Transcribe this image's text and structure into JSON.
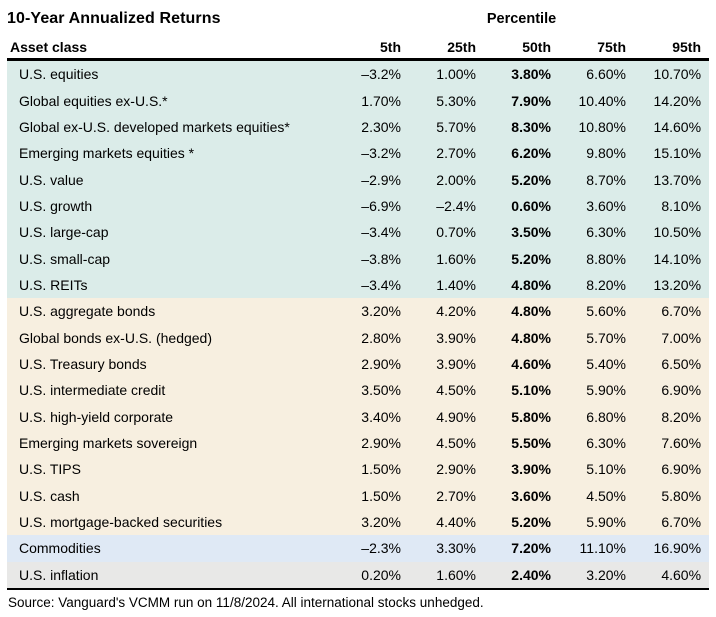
{
  "title": "10-Year Annualized Returns",
  "percentile_group_label": "Percentile",
  "table": {
    "columns": [
      "Asset class",
      "5th",
      "25th",
      "50th",
      "75th",
      "95th"
    ],
    "sections": [
      {
        "name": "equities",
        "color": "#dbece9",
        "rows": [
          {
            "label": "U.S. equities",
            "values": [
              "–3.2%",
              "1.00%",
              "3.80%",
              "6.60%",
              "10.70%"
            ]
          },
          {
            "label": "Global equities ex-U.S.*",
            "values": [
              "1.70%",
              "5.30%",
              "7.90%",
              "10.40%",
              "14.20%"
            ]
          },
          {
            "label": "Global ex-U.S. developed markets equities*",
            "values": [
              "2.30%",
              "5.70%",
              "8.30%",
              "10.80%",
              "14.60%"
            ]
          },
          {
            "label": "Emerging markets equities *",
            "values": [
              "–3.2%",
              "2.70%",
              "6.20%",
              "9.80%",
              "15.10%"
            ]
          },
          {
            "label": "U.S. value",
            "values": [
              "–2.9%",
              "2.00%",
              "5.20%",
              "8.70%",
              "13.70%"
            ]
          },
          {
            "label": "U.S. growth",
            "values": [
              "–6.9%",
              "–2.4%",
              "0.60%",
              "3.60%",
              "8.10%"
            ]
          },
          {
            "label": "U.S. large-cap",
            "values": [
              "–3.4%",
              "0.70%",
              "3.50%",
              "6.30%",
              "10.50%"
            ]
          },
          {
            "label": "U.S. small-cap",
            "values": [
              "–3.8%",
              "1.60%",
              "5.20%",
              "8.80%",
              "14.10%"
            ]
          },
          {
            "label": "U.S. REITs",
            "values": [
              "–3.4%",
              "1.40%",
              "4.80%",
              "8.20%",
              "13.20%"
            ]
          }
        ]
      },
      {
        "name": "fixed-income",
        "color": "#f7efe0",
        "rows": [
          {
            "label": "U.S. aggregate bonds",
            "values": [
              "3.20%",
              "4.20%",
              "4.80%",
              "5.60%",
              "6.70%"
            ]
          },
          {
            "label": "Global bonds ex-U.S. (hedged)",
            "values": [
              "2.80%",
              "3.90%",
              "4.80%",
              "5.70%",
              "7.00%"
            ]
          },
          {
            "label": "U.S. Treasury bonds",
            "values": [
              "2.90%",
              "3.90%",
              "4.60%",
              "5.40%",
              "6.50%"
            ]
          },
          {
            "label": "U.S. intermediate credit",
            "values": [
              "3.50%",
              "4.50%",
              "5.10%",
              "5.90%",
              "6.90%"
            ]
          },
          {
            "label": "U.S. high-yield corporate",
            "values": [
              "3.40%",
              "4.90%",
              "5.80%",
              "6.80%",
              "8.20%"
            ]
          },
          {
            "label": "Emerging markets sovereign",
            "values": [
              "2.90%",
              "4.50%",
              "5.50%",
              "6.30%",
              "7.60%"
            ]
          },
          {
            "label": "U.S. TIPS",
            "values": [
              "1.50%",
              "2.90%",
              "3.90%",
              "5.10%",
              "6.90%"
            ]
          },
          {
            "label": "U.S. cash",
            "values": [
              "1.50%",
              "2.70%",
              "3.60%",
              "4.50%",
              "5.80%"
            ]
          },
          {
            "label": "U.S. mortgage-backed securities",
            "values": [
              "3.20%",
              "4.40%",
              "5.20%",
              "5.90%",
              "6.70%"
            ]
          }
        ]
      },
      {
        "name": "commodities",
        "color": "#dfe9f5",
        "rows": [
          {
            "label": "Commodities",
            "values": [
              "–2.3%",
              "3.30%",
              "7.20%",
              "11.10%",
              "16.90%"
            ]
          }
        ]
      },
      {
        "name": "inflation",
        "color": "#e8e8e7",
        "rows": [
          {
            "label": "U.S. inflation",
            "values": [
              "0.20%",
              "1.60%",
              "2.40%",
              "3.20%",
              "4.60%"
            ]
          }
        ]
      }
    ]
  },
  "footer": "Source: Vanguard's VCMM run on 11/8/2024. All international stocks unhedged.",
  "chart_data": {
    "type": "table",
    "title": "10-Year Annualized Returns",
    "column_group_label": "Percentile",
    "columns": [
      "5th",
      "25th",
      "50th",
      "75th",
      "95th"
    ],
    "unit": "percent",
    "rows": [
      {
        "asset_class": "U.S. equities",
        "group": "equities",
        "values": [
          -3.2,
          1.0,
          3.8,
          6.6,
          10.7
        ]
      },
      {
        "asset_class": "Global equities ex-U.S.*",
        "group": "equities",
        "values": [
          1.7,
          5.3,
          7.9,
          10.4,
          14.2
        ]
      },
      {
        "asset_class": "Global ex-U.S. developed markets equities*",
        "group": "equities",
        "values": [
          2.3,
          5.7,
          8.3,
          10.8,
          14.6
        ]
      },
      {
        "asset_class": "Emerging markets equities *",
        "group": "equities",
        "values": [
          -3.2,
          2.7,
          6.2,
          9.8,
          15.1
        ]
      },
      {
        "asset_class": "U.S. value",
        "group": "equities",
        "values": [
          -2.9,
          2.0,
          5.2,
          8.7,
          13.7
        ]
      },
      {
        "asset_class": "U.S. growth",
        "group": "equities",
        "values": [
          -6.9,
          -2.4,
          0.6,
          3.6,
          8.1
        ]
      },
      {
        "asset_class": "U.S. large-cap",
        "group": "equities",
        "values": [
          -3.4,
          0.7,
          3.5,
          6.3,
          10.5
        ]
      },
      {
        "asset_class": "U.S. small-cap",
        "group": "equities",
        "values": [
          -3.8,
          1.6,
          5.2,
          8.8,
          14.1
        ]
      },
      {
        "asset_class": "U.S. REITs",
        "group": "equities",
        "values": [
          -3.4,
          1.4,
          4.8,
          8.2,
          13.2
        ]
      },
      {
        "asset_class": "U.S. aggregate bonds",
        "group": "fixed-income",
        "values": [
          3.2,
          4.2,
          4.8,
          5.6,
          6.7
        ]
      },
      {
        "asset_class": "Global bonds ex-U.S. (hedged)",
        "group": "fixed-income",
        "values": [
          2.8,
          3.9,
          4.8,
          5.7,
          7.0
        ]
      },
      {
        "asset_class": "U.S. Treasury bonds",
        "group": "fixed-income",
        "values": [
          2.9,
          3.9,
          4.6,
          5.4,
          6.5
        ]
      },
      {
        "asset_class": "U.S. intermediate credit",
        "group": "fixed-income",
        "values": [
          3.5,
          4.5,
          5.1,
          5.9,
          6.9
        ]
      },
      {
        "asset_class": "U.S. high-yield corporate",
        "group": "fixed-income",
        "values": [
          3.4,
          4.9,
          5.8,
          6.8,
          8.2
        ]
      },
      {
        "asset_class": "Emerging markets sovereign",
        "group": "fixed-income",
        "values": [
          2.9,
          4.5,
          5.5,
          6.3,
          7.6
        ]
      },
      {
        "asset_class": "U.S. TIPS",
        "group": "fixed-income",
        "values": [
          1.5,
          2.9,
          3.9,
          5.1,
          6.9
        ]
      },
      {
        "asset_class": "U.S. cash",
        "group": "fixed-income",
        "values": [
          1.5,
          2.7,
          3.6,
          4.5,
          5.8
        ]
      },
      {
        "asset_class": "U.S. mortgage-backed securities",
        "group": "fixed-income",
        "values": [
          3.2,
          4.4,
          5.2,
          5.9,
          6.7
        ]
      },
      {
        "asset_class": "Commodities",
        "group": "commodities",
        "values": [
          -2.3,
          3.3,
          7.2,
          11.1,
          16.9
        ]
      },
      {
        "asset_class": "U.S. inflation",
        "group": "inflation",
        "values": [
          0.2,
          1.6,
          2.4,
          3.2,
          4.6
        ]
      }
    ],
    "notes": "50th percentile column rendered in bold; section row colors: equities #dbece9, fixed-income #f7efe0, commodities #dfe9f5, inflation #e8e8e7",
    "source": "Source: Vanguard's VCMM run on 11/8/2024. All international stocks unhedged."
  }
}
